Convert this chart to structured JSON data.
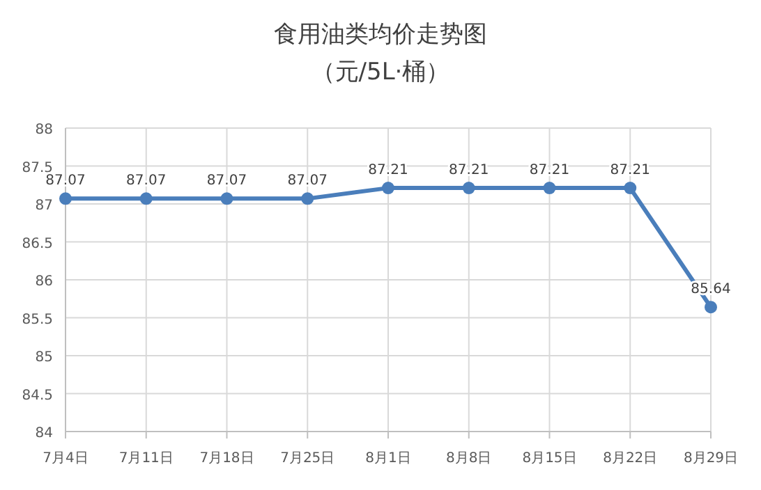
{
  "chart_data": {
    "type": "line",
    "title": "食用油类均价走势图",
    "subtitle": "（元/5L·桶）",
    "categories": [
      "7月4日",
      "7月11日",
      "7月18日",
      "7月25日",
      "8月1日",
      "8月8日",
      "8月15日",
      "8月22日",
      "8月29日"
    ],
    "series": [
      {
        "color": "#4a7ebb",
        "values": [
          87.07,
          87.07,
          87.07,
          87.07,
          87.21,
          87.21,
          87.21,
          87.21,
          85.64
        ]
      }
    ],
    "ylim": [
      84,
      88
    ],
    "yticks": [
      84,
      84.5,
      85,
      85.5,
      86,
      86.5,
      87,
      87.5,
      88
    ],
    "grid": true,
    "marker": "circle",
    "line_style": "solid",
    "data_labels": true
  }
}
